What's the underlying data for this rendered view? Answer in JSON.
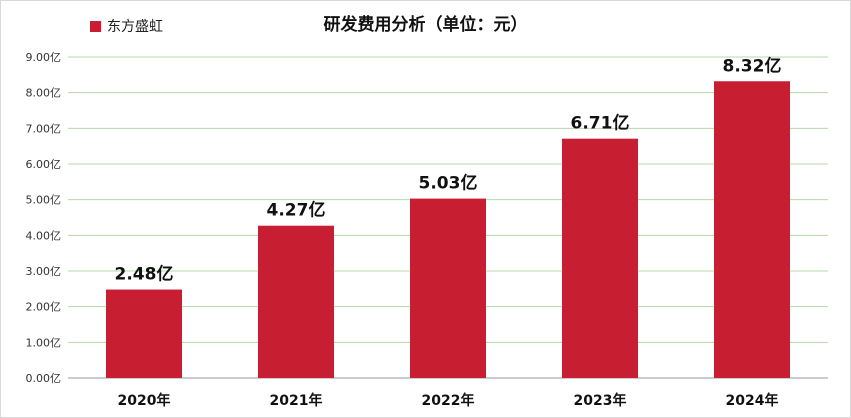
{
  "chart_data": {
    "type": "bar",
    "title": "研发费用分析（单位：元）",
    "categories": [
      "2020年",
      "2021年",
      "2022年",
      "2023年",
      "2024年"
    ],
    "series": [
      {
        "name": "东方盛虹",
        "values": [
          2.48,
          4.27,
          5.03,
          6.71,
          8.32
        ],
        "color": "#c81e32"
      }
    ],
    "data_labels": [
      "2.48亿",
      "4.27亿",
      "5.03亿",
      "6.71亿",
      "8.32亿"
    ],
    "y_ticks": [
      "0.00亿",
      "1.00亿",
      "2.00亿",
      "3.00亿",
      "4.00亿",
      "5.00亿",
      "6.00亿",
      "7.00亿",
      "8.00亿",
      "9.00亿"
    ],
    "ylim": [
      0,
      9
    ],
    "grid": true,
    "grid_color": "#b7d7a8",
    "legend_position": "top-left"
  }
}
